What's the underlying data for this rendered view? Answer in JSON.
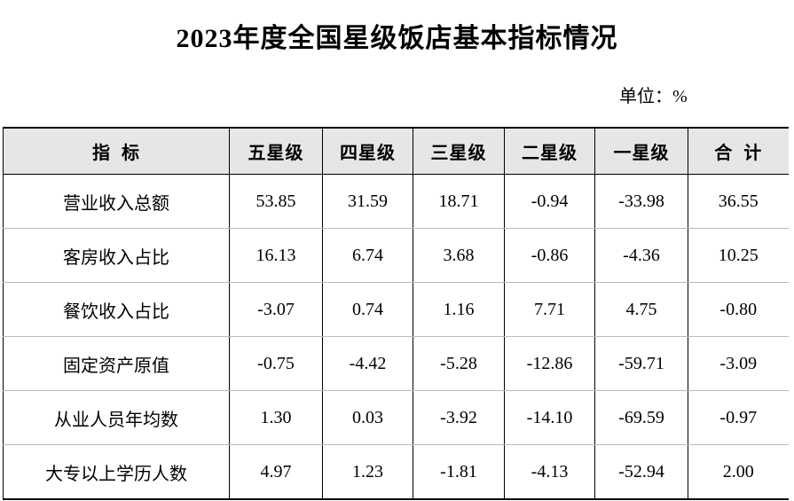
{
  "header": {
    "title": "2023年度全国星级饭店基本指标情况",
    "unit": "单位：%"
  },
  "table": {
    "columns": [
      "指  标",
      "五星级",
      "四星级",
      "三星级",
      "二星级",
      "一星级",
      "合  计"
    ],
    "rows": [
      [
        "营业收入总额",
        "53.85",
        "31.59",
        "18.71",
        "-0.94",
        "-33.98",
        "36.55"
      ],
      [
        "客房收入占比",
        "16.13",
        "6.74",
        "3.68",
        "-0.86",
        "-4.36",
        "10.25"
      ],
      [
        "餐饮收入占比",
        "-3.07",
        "0.74",
        "1.16",
        "7.71",
        "4.75",
        "-0.80"
      ],
      [
        "固定资产原值",
        "-0.75",
        "-4.42",
        "-5.28",
        "-12.86",
        "-59.71",
        "-3.09"
      ],
      [
        "从业人员年均数",
        "1.30",
        "0.03",
        "-3.92",
        "-14.10",
        "-69.59",
        "-0.97"
      ],
      [
        "大专以上学历人数",
        "4.97",
        "1.23",
        "-1.81",
        "-4.13",
        "-52.94",
        "2.00"
      ]
    ]
  }
}
